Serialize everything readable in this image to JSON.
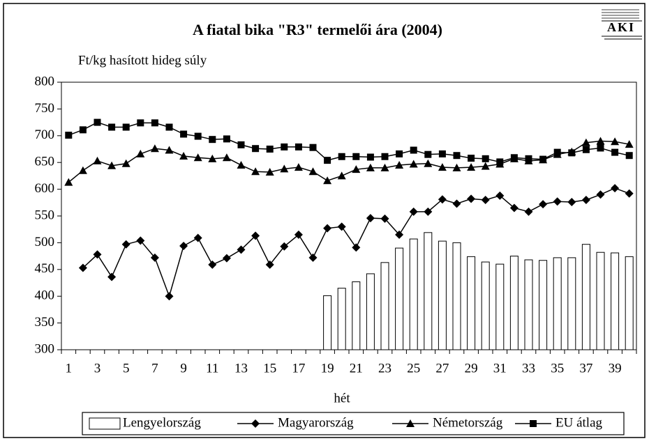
{
  "chart_data": {
    "type": "bar_line",
    "title": "A fiatal bika \"R3\" termelői ára (2004)",
    "logo": "AKI",
    "y_label": "Ft/kg hasított hideg súly",
    "x_label": "hét",
    "categories": [
      "1",
      null,
      "3",
      null,
      "5",
      null,
      "7",
      null,
      "9",
      null,
      "11",
      null,
      "13",
      null,
      "15",
      null,
      "17",
      null,
      "19",
      null,
      "21",
      null,
      "23",
      null,
      "25",
      null,
      "27",
      null,
      "29",
      null,
      "31",
      null,
      "33",
      null,
      "35",
      null,
      "37",
      null,
      "39",
      null
    ],
    "ylim": [
      300,
      800
    ],
    "yticks": [
      300,
      350,
      400,
      450,
      500,
      550,
      600,
      650,
      700,
      750,
      800
    ],
    "legend": "bottom",
    "series": [
      {
        "name": "Lengyelország",
        "type": "bar",
        "color": "#ffffff",
        "values": [
          null,
          null,
          null,
          null,
          null,
          null,
          null,
          null,
          null,
          null,
          null,
          null,
          null,
          null,
          null,
          null,
          null,
          null,
          401,
          415,
          427,
          442,
          463,
          490,
          507,
          519,
          503,
          500,
          474,
          464,
          460,
          475,
          468,
          467,
          472,
          472,
          497,
          482,
          481,
          474
        ]
      },
      {
        "name": "Magyarország",
        "type": "line",
        "marker": "diamond",
        "color": "#000000",
        "values": [
          null,
          453,
          478,
          436,
          497,
          504,
          472,
          400,
          494,
          509,
          459,
          471,
          487,
          513,
          459,
          493,
          515,
          472,
          527,
          530,
          491,
          546,
          545,
          515,
          558,
          558,
          581,
          573,
          582,
          580,
          588,
          565,
          558,
          572,
          577,
          576,
          580,
          590,
          602,
          592
        ]
      },
      {
        "name": "Németország",
        "type": "line",
        "marker": "triangle",
        "color": "#000000",
        "values": [
          613,
          635,
          653,
          644,
          648,
          666,
          676,
          673,
          662,
          659,
          657,
          659,
          645,
          633,
          632,
          638,
          641,
          633,
          616,
          625,
          637,
          640,
          640,
          645,
          647,
          648,
          641,
          640,
          641,
          643,
          647,
          657,
          653,
          655,
          665,
          670,
          687,
          690,
          689,
          684
        ]
      },
      {
        "name": "EU átlag",
        "type": "line",
        "marker": "square",
        "color": "#000000",
        "values": [
          701,
          711,
          725,
          716,
          716,
          724,
          724,
          716,
          703,
          699,
          693,
          694,
          683,
          676,
          675,
          679,
          679,
          678,
          654,
          661,
          661,
          660,
          661,
          666,
          673,
          665,
          666,
          663,
          658,
          657,
          651,
          659,
          657,
          656,
          669,
          668,
          674,
          677,
          669,
          663
        ]
      }
    ]
  }
}
